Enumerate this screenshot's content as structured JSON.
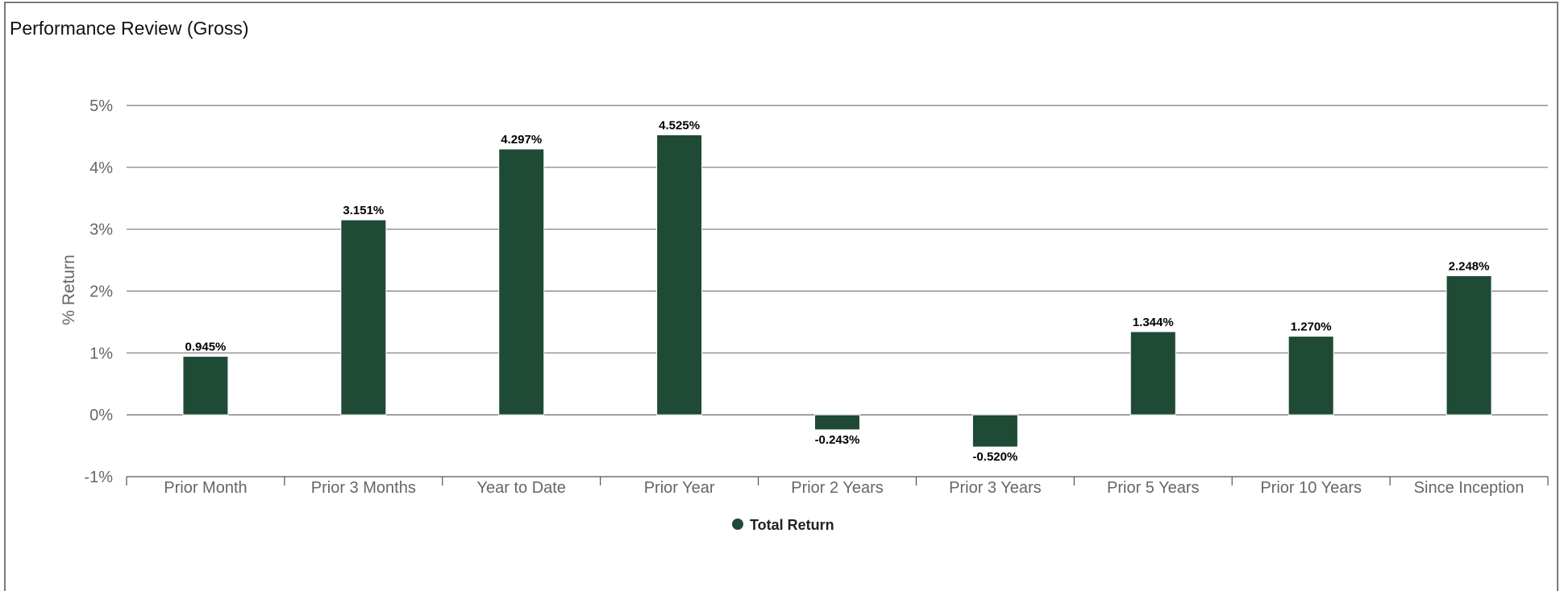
{
  "panel": {
    "title": "Performance Review (Gross)"
  },
  "chart_data": {
    "type": "bar",
    "title": "Performance Review (Gross)",
    "xlabel": "",
    "ylabel": "% Return",
    "categories": [
      "Prior Month",
      "Prior 3 Months",
      "Year to Date",
      "Prior Year",
      "Prior 2 Years",
      "Prior 3 Years",
      "Prior 5 Years",
      "Prior 10 Years",
      "Since Inception"
    ],
    "series": [
      {
        "name": "Total Return",
        "color": "#1f4a36",
        "values": [
          0.945,
          3.151,
          4.297,
          4.525,
          -0.243,
          -0.52,
          1.344,
          1.27,
          2.248
        ],
        "labels": [
          "0.945%",
          "3.151%",
          "4.297%",
          "4.525%",
          "-0.243%",
          "-0.520%",
          "1.344%",
          "1.270%",
          "2.248%"
        ]
      }
    ],
    "ylim": [
      -1,
      5
    ],
    "yticks": [
      -1,
      0,
      1,
      2,
      3,
      4,
      5
    ],
    "ytick_labels": [
      "-1%",
      "0%",
      "1%",
      "2%",
      "3%",
      "4%",
      "5%"
    ],
    "grid": true,
    "legend_position": "bottom"
  }
}
